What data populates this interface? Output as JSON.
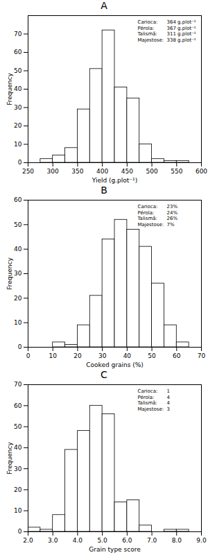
{
  "chart_data": [
    {
      "type": "histogram",
      "title": "A",
      "bins": [
        275,
        300,
        325,
        350,
        375,
        400,
        425,
        450,
        475,
        500,
        525,
        550,
        575
      ],
      "counts": [
        2,
        4,
        8,
        29,
        51,
        72,
        41,
        35,
        10,
        2,
        1,
        1
      ],
      "xlim": [
        250,
        600
      ],
      "xticks": [
        250,
        300,
        350,
        400,
        450,
        500,
        550,
        600
      ],
      "ylim": [
        0,
        80
      ],
      "yticks": [
        0,
        10,
        20,
        30,
        40,
        50,
        60,
        70
      ],
      "x_label": "Yield (g.plot⁻¹)",
      "y_label": "Frequency",
      "annotations": [
        {
          "label": "Carioca:",
          "value": "364 g.plot⁻¹"
        },
        {
          "label": "Pérola:",
          "value": "367 g.plot⁻¹"
        },
        {
          "label": "Talismã:",
          "value": "311 g.plot⁻¹"
        },
        {
          "label": "Majestose:",
          "value": "338 g.plot⁻¹"
        }
      ]
    },
    {
      "type": "histogram",
      "title": "B",
      "bins": [
        10,
        15,
        20,
        25,
        30,
        35,
        40,
        45,
        50,
        55,
        60,
        65
      ],
      "counts": [
        2,
        1,
        9,
        21,
        44,
        52,
        48,
        41,
        26,
        9,
        2
      ],
      "xlim": [
        0,
        70
      ],
      "xticks": [
        0,
        10,
        20,
        30,
        40,
        50,
        60,
        70
      ],
      "ylim": [
        0,
        60
      ],
      "yticks": [
        0,
        10,
        20,
        30,
        40,
        50,
        60
      ],
      "x_label": "Cooked grains (%)",
      "y_label": "Frequency",
      "annotations": [
        {
          "label": "Carioca:",
          "value": "23%"
        },
        {
          "label": "Pérola:",
          "value": "24%"
        },
        {
          "label": "Talismã:",
          "value": "26%"
        },
        {
          "label": "Majestose:",
          "value": "7%"
        }
      ]
    },
    {
      "type": "histogram",
      "title": "C",
      "bins": [
        2,
        2.5,
        3,
        3.5,
        4,
        4.5,
        5,
        5.5,
        6,
        6.5,
        7,
        7.5,
        8,
        8.5
      ],
      "counts": [
        2,
        1,
        8,
        39,
        48,
        60,
        56,
        14,
        15,
        3,
        0,
        1,
        1
      ],
      "xlim": [
        2,
        9
      ],
      "xticks": [
        2,
        3,
        4,
        5,
        6,
        7,
        8,
        9
      ],
      "ylim": [
        0,
        70
      ],
      "yticks": [
        0,
        10,
        20,
        30,
        40,
        50,
        60,
        70
      ],
      "x_label": "Grain type score",
      "y_label": "Frequency",
      "annotations": [
        {
          "label": "Carioca:",
          "value": "1"
        },
        {
          "label": "Pérola:",
          "value": "4"
        },
        {
          "label": "Talismã:",
          "value": "4"
        },
        {
          "label": "Majestose:",
          "value": "3"
        }
      ]
    }
  ]
}
